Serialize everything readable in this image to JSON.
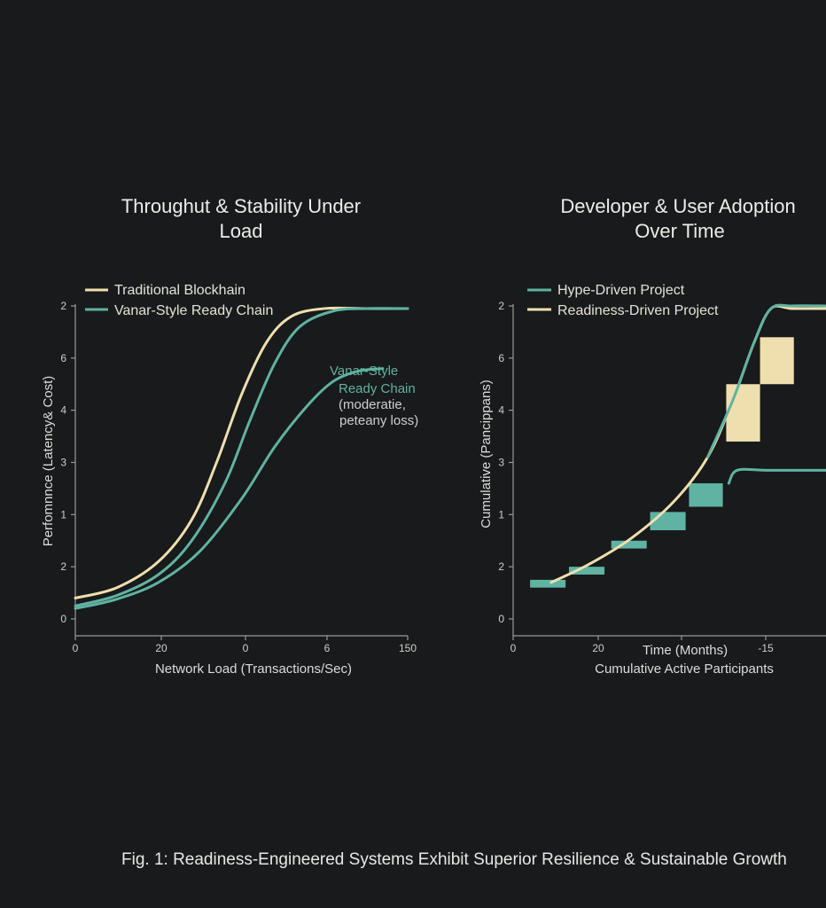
{
  "figure": {
    "caption": "Fig. 1: Readiness-Engineered Systems Exhibit Superior Resilience & Sustainable Growth",
    "background": "#191a1b",
    "colors": {
      "cream": "#efdfae",
      "teal": "#5fb3a2",
      "text": "#e6e6e3",
      "axis": "#9a9a96"
    }
  },
  "chart_data": [
    {
      "type": "line",
      "title_lines": [
        "Throughut & Stability Under",
        "Load"
      ],
      "xlabel": "Network Load (Transactions/Sec)",
      "ylabel": "Perfomnnce (Latency& Cost)",
      "x_tick_labels": [
        "0",
        "20",
        "0",
        "6",
        "150"
      ],
      "y_tick_labels": [
        "0",
        "2",
        "1",
        "3",
        "4",
        "6",
        "2"
      ],
      "xlim": [
        0,
        4
      ],
      "ylim": [
        0,
        6
      ],
      "grid": false,
      "legend_position": "top-left",
      "legend": [
        {
          "label": "Traditional Blockhain",
          "color": "#efdfae"
        },
        {
          "label": "Vanar-Style Ready Chain",
          "color": "#5fb3a2"
        }
      ],
      "series": [
        {
          "name": "Traditional Blockhain",
          "color": "#efdfae",
          "x": [
            0,
            0.5,
            1.0,
            1.4,
            1.7,
            2.0,
            2.3,
            2.6,
            3.0,
            3.5,
            4.0
          ],
          "y": [
            0.4,
            0.6,
            1.1,
            1.9,
            3.0,
            4.3,
            5.3,
            5.8,
            5.95,
            5.95,
            5.95
          ]
        },
        {
          "name": "Vanar-Style Ready Chain",
          "color": "#5fb3a2",
          "x": [
            0,
            0.5,
            1.0,
            1.4,
            1.8,
            2.1,
            2.4,
            2.7,
            3.1,
            3.5,
            4.0
          ],
          "y": [
            0.25,
            0.45,
            0.85,
            1.5,
            2.6,
            3.8,
            4.9,
            5.6,
            5.9,
            5.95,
            5.95
          ]
        },
        {
          "name": "Vanar-Style Ready Chain (moderate loss)",
          "color": "#5fb3a2",
          "x": [
            0,
            0.5,
            1.0,
            1.5,
            2.0,
            2.4,
            2.8,
            3.1,
            3.4,
            3.7
          ],
          "y": [
            0.2,
            0.38,
            0.7,
            1.3,
            2.3,
            3.3,
            4.1,
            4.55,
            4.75,
            4.8
          ]
        }
      ],
      "annotation": {
        "lines_teal": [
          "Vanar-Style",
          "Ready Chain"
        ],
        "lines_grey": [
          "(moderatie,",
          "peteany loss)"
        ]
      }
    },
    {
      "type": "line",
      "title_lines": [
        "Developer & User Adoption",
        "Over Time"
      ],
      "xlabel": "Time (Months)",
      "xlabel_secondary": "Cumulative Active Participants",
      "ylabel": "Cumulative (Pancippans)",
      "x_tick_labels": [
        "0",
        "20",
        "",
        "‑15"
      ],
      "y_tick_labels": [
        "0",
        "2",
        "1",
        "3",
        "4",
        "6",
        "2"
      ],
      "xlim": [
        0,
        3.7
      ],
      "ylim": [
        0,
        6
      ],
      "grid": false,
      "legend_position": "top-left",
      "legend": [
        {
          "label": "Hype-Driven Project",
          "color": "#5fb3a2"
        },
        {
          "label": "Readiness-Driven Project",
          "color": "#efdfae"
        }
      ],
      "series": [
        {
          "name": "Readiness-Driven Project",
          "color": "#efdfae",
          "x": [
            0.45,
            0.9,
            1.4,
            1.9,
            2.3,
            2.6,
            2.85,
            3.05,
            3.3,
            3.7
          ],
          "y": [
            0.7,
            1.05,
            1.55,
            2.25,
            3.1,
            4.2,
            5.3,
            5.95,
            5.95,
            5.95
          ]
        },
        {
          "name": "Readiness-Driven Project (teal overlay)",
          "color": "#5fb3a2",
          "x": [
            2.3,
            2.6,
            2.85,
            3.05,
            3.3,
            3.7
          ],
          "y": [
            3.1,
            4.2,
            5.3,
            5.95,
            6.0,
            6.0
          ]
        },
        {
          "name": "Hype-Driven Project",
          "color": "#5fb3a2",
          "x": [
            2.55,
            2.65,
            3.0,
            3.7
          ],
          "y": [
            2.6,
            2.85,
            2.85,
            2.85
          ]
        }
      ],
      "bars": [
        {
          "x0": 0.2,
          "x1": 0.62,
          "y0": 0.6,
          "y1": 0.75,
          "color": "#5fb3a2"
        },
        {
          "x0": 0.66,
          "x1": 1.08,
          "y0": 0.85,
          "y1": 1.0,
          "color": "#5fb3a2"
        },
        {
          "x0": 1.16,
          "x1": 1.58,
          "y0": 1.35,
          "y1": 1.5,
          "color": "#5fb3a2"
        },
        {
          "x0": 1.62,
          "x1": 2.04,
          "y0": 1.7,
          "y1": 2.05,
          "color": "#5fb3a2"
        },
        {
          "x0": 2.08,
          "x1": 2.48,
          "y0": 2.15,
          "y1": 2.6,
          "color": "#5fb3a2"
        },
        {
          "x0": 2.52,
          "x1": 2.92,
          "y0": 3.4,
          "y1": 4.5,
          "color": "#efdfae"
        },
        {
          "x0": 2.92,
          "x1": 3.32,
          "y0": 4.5,
          "y1": 5.4,
          "color": "#efdfae"
        }
      ]
    }
  ]
}
